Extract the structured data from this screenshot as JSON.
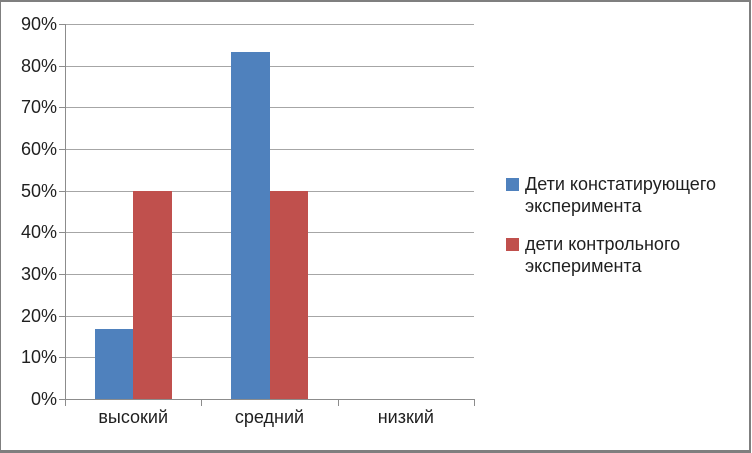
{
  "chart_data": {
    "type": "bar",
    "title": "",
    "xlabel": "",
    "ylabel": "",
    "categories": [
      "высокий",
      "средний",
      "низкий"
    ],
    "series": [
      {
        "name": "Дети констатирующего эксперимента",
        "color": "#4F81BD",
        "values": [
          16.7,
          83.3,
          0
        ]
      },
      {
        "name": "дети контрольного эксперимента",
        "color": "#C0504D",
        "values": [
          50,
          50,
          0
        ]
      }
    ],
    "ylim": [
      0,
      90
    ],
    "ytick_step": 10,
    "ytick_labels": [
      "0%",
      "10%",
      "20%",
      "30%",
      "40%",
      "50%",
      "60%",
      "70%",
      "80%",
      "90%"
    ],
    "grid": true,
    "legend_position": "right"
  },
  "colors": {
    "background": "#ffffff",
    "frame_border": "#7f7f7f",
    "gridline": "#a6a6a6",
    "axis": "#8c8c8c",
    "text": "#1f1f1f"
  }
}
